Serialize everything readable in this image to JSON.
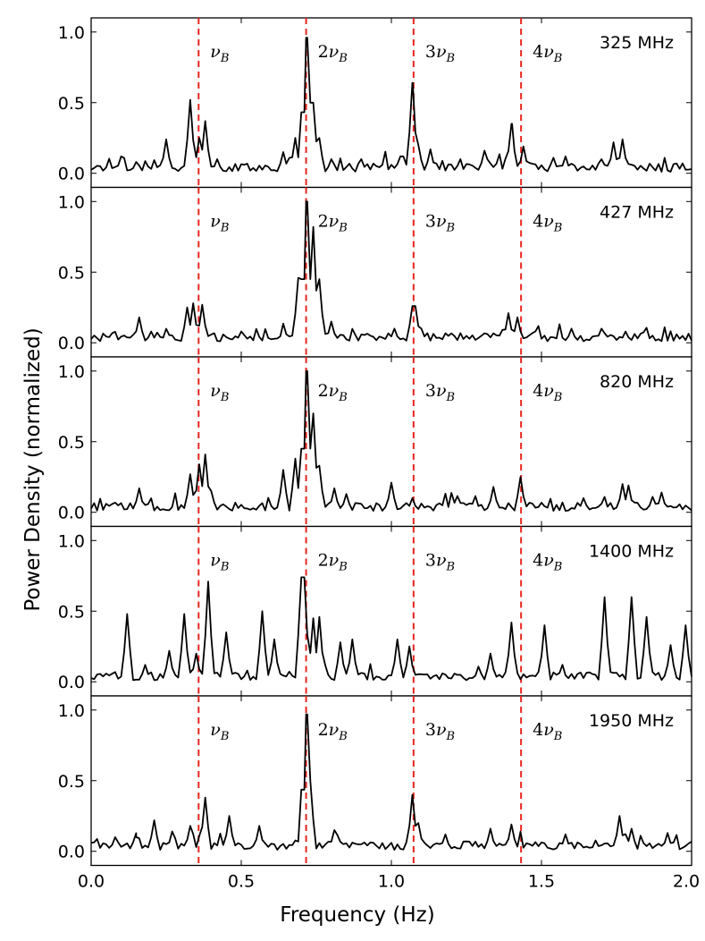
{
  "chart_data": {
    "type": "line",
    "xlabel": "Frequency (Hz)",
    "ylabel": "Power Density (normalized)",
    "xlim": [
      0.0,
      2.0
    ],
    "ylim": [
      -0.1,
      1.1
    ],
    "xticks": [
      0.0,
      0.5,
      1.0,
      1.5,
      2.0
    ],
    "xtick_labels": [
      "0.0",
      "0.5",
      "1.0",
      "1.5",
      "2.0"
    ],
    "yticks": [
      0.0,
      0.5,
      1.0
    ],
    "ytick_labels": [
      "0.0",
      "0.5",
      "1.0"
    ],
    "line_color": "#000000",
    "harmonic_line_color": "#e8261f",
    "harmonics": [
      {
        "freq": 0.358,
        "coef": "",
        "label": "ν",
        "sub": "B"
      },
      {
        "freq": 0.716,
        "coef": "2",
        "label": "ν",
        "sub": "B"
      },
      {
        "freq": 1.074,
        "coef": "3",
        "label": "ν",
        "sub": "B"
      },
      {
        "freq": 1.432,
        "coef": "4",
        "label": "ν",
        "sub": "B"
      }
    ],
    "panels": [
      {
        "label": "325 MHz",
        "peaks": [
          [
            0.1,
            0.12
          ],
          [
            0.15,
            0.08
          ],
          [
            0.25,
            0.24
          ],
          [
            0.33,
            0.52
          ],
          [
            0.36,
            0.25
          ],
          [
            0.38,
            0.37
          ],
          [
            0.42,
            0.1
          ],
          [
            0.64,
            0.15
          ],
          [
            0.68,
            0.25
          ],
          [
            0.716,
            0.96
          ],
          [
            0.735,
            0.5
          ],
          [
            0.76,
            0.25
          ],
          [
            0.8,
            0.1
          ],
          [
            0.9,
            0.1
          ],
          [
            1.0,
            0.06
          ],
          [
            1.035,
            0.12
          ],
          [
            1.071,
            0.64
          ],
          [
            1.09,
            0.2
          ],
          [
            1.13,
            0.17
          ],
          [
            1.31,
            0.16
          ],
          [
            1.402,
            0.35
          ],
          [
            1.44,
            0.19
          ],
          [
            1.58,
            0.12
          ],
          [
            1.7,
            0.1
          ],
          [
            1.74,
            0.22
          ],
          [
            1.77,
            0.24
          ],
          [
            1.95,
            0.07
          ]
        ]
      },
      {
        "label": "427 MHz",
        "peaks": [
          [
            0.16,
            0.18
          ],
          [
            0.2,
            0.08
          ],
          [
            0.32,
            0.25
          ],
          [
            0.34,
            0.28
          ],
          [
            0.37,
            0.27
          ],
          [
            0.5,
            0.08
          ],
          [
            0.69,
            0.46
          ],
          [
            0.716,
            1.0
          ],
          [
            0.74,
            0.82
          ],
          [
            0.76,
            0.45
          ],
          [
            0.8,
            0.15
          ],
          [
            1.01,
            0.1
          ],
          [
            1.075,
            0.26
          ],
          [
            1.1,
            0.1
          ],
          [
            1.39,
            0.21
          ],
          [
            1.42,
            0.18
          ],
          [
            1.6,
            0.1
          ],
          [
            1.7,
            0.1
          ],
          [
            1.78,
            0.08
          ]
        ]
      },
      {
        "label": "820 MHz",
        "peaks": [
          [
            0.16,
            0.17
          ],
          [
            0.33,
            0.27
          ],
          [
            0.36,
            0.34
          ],
          [
            0.38,
            0.41
          ],
          [
            0.4,
            0.15
          ],
          [
            0.64,
            0.3
          ],
          [
            0.68,
            0.38
          ],
          [
            0.716,
            1.0
          ],
          [
            0.74,
            0.7
          ],
          [
            0.76,
            0.33
          ],
          [
            0.81,
            0.17
          ],
          [
            0.85,
            0.13
          ],
          [
            1.0,
            0.21
          ],
          [
            1.07,
            0.1
          ],
          [
            1.34,
            0.18
          ],
          [
            1.43,
            0.25
          ],
          [
            1.64,
            0.1
          ],
          [
            1.77,
            0.2
          ],
          [
            1.79,
            0.19
          ],
          [
            1.9,
            0.14
          ]
        ]
      },
      {
        "label": "1400 MHz",
        "peaks": [
          [
            0.12,
            0.48
          ],
          [
            0.18,
            0.12
          ],
          [
            0.26,
            0.22
          ],
          [
            0.31,
            0.48
          ],
          [
            0.35,
            0.2
          ],
          [
            0.39,
            0.71
          ],
          [
            0.45,
            0.35
          ],
          [
            0.57,
            0.5
          ],
          [
            0.61,
            0.3
          ],
          [
            0.705,
            0.74
          ],
          [
            0.74,
            0.45
          ],
          [
            0.76,
            0.46
          ],
          [
            0.83,
            0.28
          ],
          [
            0.87,
            0.3
          ],
          [
            1.02,
            0.3
          ],
          [
            1.06,
            0.25
          ],
          [
            1.33,
            0.2
          ],
          [
            1.4,
            0.42
          ],
          [
            1.51,
            0.4
          ],
          [
            1.71,
            0.6
          ],
          [
            1.8,
            0.6
          ],
          [
            1.85,
            0.46
          ],
          [
            1.93,
            0.26
          ],
          [
            1.98,
            0.4
          ]
        ]
      },
      {
        "label": "1950 MHz",
        "peaks": [
          [
            0.08,
            0.1
          ],
          [
            0.15,
            0.1
          ],
          [
            0.21,
            0.22
          ],
          [
            0.27,
            0.14
          ],
          [
            0.33,
            0.18
          ],
          [
            0.38,
            0.38
          ],
          [
            0.46,
            0.25
          ],
          [
            0.56,
            0.18
          ],
          [
            0.716,
            0.97
          ],
          [
            0.73,
            0.5
          ],
          [
            0.81,
            0.15
          ],
          [
            1.07,
            0.4
          ],
          [
            1.09,
            0.2
          ],
          [
            1.18,
            0.12
          ],
          [
            1.33,
            0.16
          ],
          [
            1.4,
            0.19
          ],
          [
            1.58,
            0.12
          ],
          [
            1.76,
            0.25
          ],
          [
            1.8,
            0.16
          ],
          [
            1.92,
            0.13
          ]
        ]
      }
    ]
  }
}
